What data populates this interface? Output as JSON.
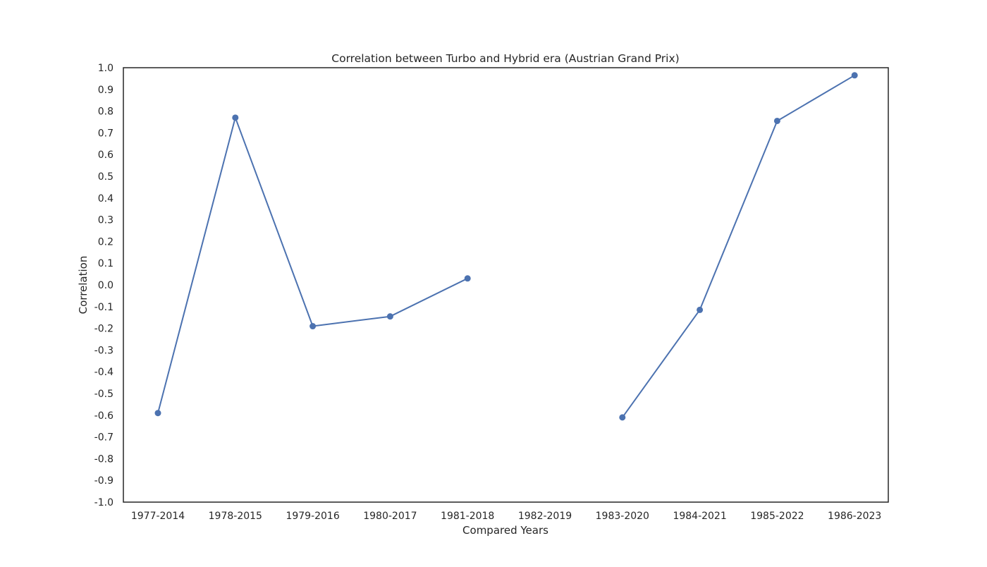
{
  "chart_data": {
    "type": "line",
    "title": "Correlation between Turbo and Hybrid era (Austrian Grand Prix)",
    "xlabel": "Compared Years",
    "ylabel": "Correlation",
    "categories": [
      "1977-2014",
      "1978-2015",
      "1979-2016",
      "1980-2017",
      "1981-2018",
      "1982-2019",
      "1983-2020",
      "1984-2021",
      "1985-2022",
      "1986-2023"
    ],
    "values": [
      -0.59,
      0.77,
      -0.19,
      -0.145,
      0.03,
      null,
      -0.61,
      -0.115,
      0.755,
      0.965
    ],
    "ylim": [
      -1.0,
      1.0
    ],
    "yticks": [
      "-1.0",
      "-0.9",
      "-0.8",
      "-0.7",
      "-0.6",
      "-0.5",
      "-0.4",
      "-0.3",
      "-0.2",
      "-0.1",
      "0.0",
      "0.1",
      "0.2",
      "0.3",
      "0.4",
      "0.5",
      "0.6",
      "0.7",
      "0.8",
      "0.9",
      "1.0"
    ],
    "grid": false,
    "markers": true,
    "line_color": "#4c72b0"
  }
}
